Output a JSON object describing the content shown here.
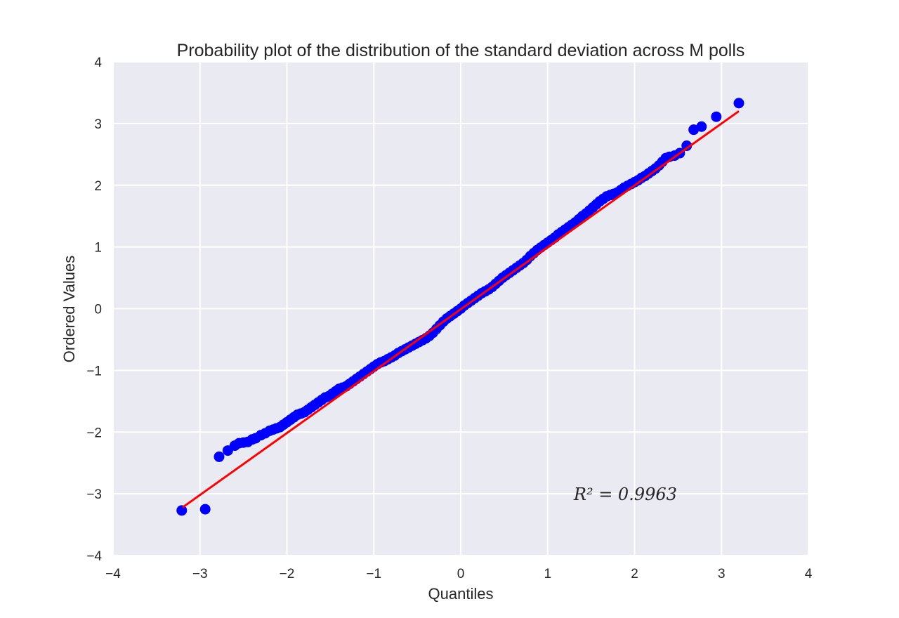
{
  "chart_data": {
    "type": "scatter",
    "title": "Probability plot of the distribution of the standard deviation across M polls",
    "xlabel": "Quantiles",
    "ylabel": "Ordered Values",
    "xlim": [
      -4,
      4
    ],
    "ylim": [
      -4,
      4
    ],
    "xticks": [
      -4,
      -3,
      -2,
      -1,
      0,
      1,
      2,
      3,
      4
    ],
    "yticks": [
      -4,
      -3,
      -2,
      -1,
      0,
      1,
      2,
      3,
      4
    ],
    "xtick_labels": [
      "−4",
      "−3",
      "−2",
      "−1",
      "0",
      "1",
      "2",
      "3",
      "4"
    ],
    "ytick_labels": [
      "−4",
      "−3",
      "−2",
      "−1",
      "0",
      "1",
      "2",
      "3",
      "4"
    ],
    "grid": true,
    "background_color": "#EAEAF2",
    "grid_color": "#FFFFFF",
    "marker_color": "#0000FF",
    "line_color": "#FF0000",
    "fit_line": {
      "x": [
        -3.2,
        3.2
      ],
      "y": [
        -3.22,
        3.2
      ]
    },
    "points": {
      "x": [
        -3.21,
        -2.94,
        -2.78,
        -2.68,
        -2.6,
        -2.55,
        -2.5,
        -2.45,
        -2.4,
        -2.36,
        -2.3,
        -2.25,
        -2.2,
        -2.16,
        -2.12,
        -2.08,
        -2.04,
        -2.0,
        -1.96,
        -1.92,
        -1.88,
        -1.84,
        -1.8,
        -1.76,
        -1.72,
        -1.68,
        -1.64,
        -1.6,
        -1.56,
        -1.52,
        -1.48,
        -1.44,
        -1.4,
        -1.36,
        -1.32,
        -1.28,
        -1.24,
        -1.2,
        -1.16,
        -1.12,
        -1.08,
        -1.04,
        -1.0,
        -0.96,
        -0.92,
        -0.88,
        -0.84,
        -0.8,
        -0.76,
        -0.72,
        -0.68,
        -0.64,
        -0.6,
        -0.56,
        -0.52,
        -0.48,
        -0.44,
        -0.4,
        -0.36,
        -0.32,
        -0.28,
        -0.24,
        -0.2,
        -0.16,
        -0.12,
        -0.08,
        -0.04,
        0.0,
        0.04,
        0.08,
        0.12,
        0.16,
        0.2,
        0.24,
        0.28,
        0.32,
        0.36,
        0.4,
        0.44,
        0.48,
        0.52,
        0.56,
        0.6,
        0.64,
        0.68,
        0.72,
        0.76,
        0.8,
        0.84,
        0.88,
        0.92,
        0.96,
        1.0,
        1.04,
        1.08,
        1.12,
        1.16,
        1.2,
        1.24,
        1.28,
        1.32,
        1.36,
        1.4,
        1.44,
        1.48,
        1.52,
        1.56,
        1.6,
        1.64,
        1.68,
        1.72,
        1.76,
        1.8,
        1.84,
        1.88,
        1.92,
        1.96,
        2.0,
        2.04,
        2.08,
        2.12,
        2.16,
        2.2,
        2.24,
        2.28,
        2.32,
        2.36,
        2.4,
        2.46,
        2.52,
        2.6,
        2.68,
        2.77,
        2.94,
        3.2
      ],
      "y": [
        -3.27,
        -3.25,
        -2.4,
        -2.3,
        -2.22,
        -2.18,
        -2.17,
        -2.16,
        -2.12,
        -2.1,
        -2.05,
        -2.02,
        -1.98,
        -1.96,
        -1.94,
        -1.92,
        -1.88,
        -1.84,
        -1.8,
        -1.76,
        -1.72,
        -1.7,
        -1.68,
        -1.64,
        -1.6,
        -1.56,
        -1.52,
        -1.48,
        -1.44,
        -1.42,
        -1.38,
        -1.34,
        -1.3,
        -1.28,
        -1.26,
        -1.22,
        -1.18,
        -1.14,
        -1.1,
        -1.06,
        -1.02,
        -0.98,
        -0.94,
        -0.9,
        -0.87,
        -0.85,
        -0.82,
        -0.79,
        -0.76,
        -0.72,
        -0.69,
        -0.66,
        -0.63,
        -0.6,
        -0.57,
        -0.54,
        -0.51,
        -0.48,
        -0.44,
        -0.39,
        -0.33,
        -0.27,
        -0.21,
        -0.16,
        -0.12,
        -0.08,
        -0.04,
        0.0,
        0.05,
        0.09,
        0.13,
        0.17,
        0.21,
        0.25,
        0.28,
        0.31,
        0.35,
        0.4,
        0.45,
        0.5,
        0.54,
        0.58,
        0.62,
        0.66,
        0.7,
        0.74,
        0.79,
        0.85,
        0.9,
        0.95,
        0.99,
        1.03,
        1.07,
        1.11,
        1.15,
        1.2,
        1.24,
        1.28,
        1.32,
        1.36,
        1.4,
        1.45,
        1.5,
        1.54,
        1.59,
        1.64,
        1.69,
        1.74,
        1.78,
        1.82,
        1.84,
        1.86,
        1.88,
        1.92,
        1.96,
        1.99,
        2.02,
        2.05,
        2.08,
        2.12,
        2.15,
        2.19,
        2.23,
        2.27,
        2.32,
        2.38,
        2.44,
        2.46,
        2.48,
        2.52,
        2.64,
        2.9,
        2.95,
        3.11,
        3.33
      ]
    },
    "annotation": {
      "text": "R² = 0.9963",
      "x": 1.3,
      "y": -3.1
    }
  }
}
